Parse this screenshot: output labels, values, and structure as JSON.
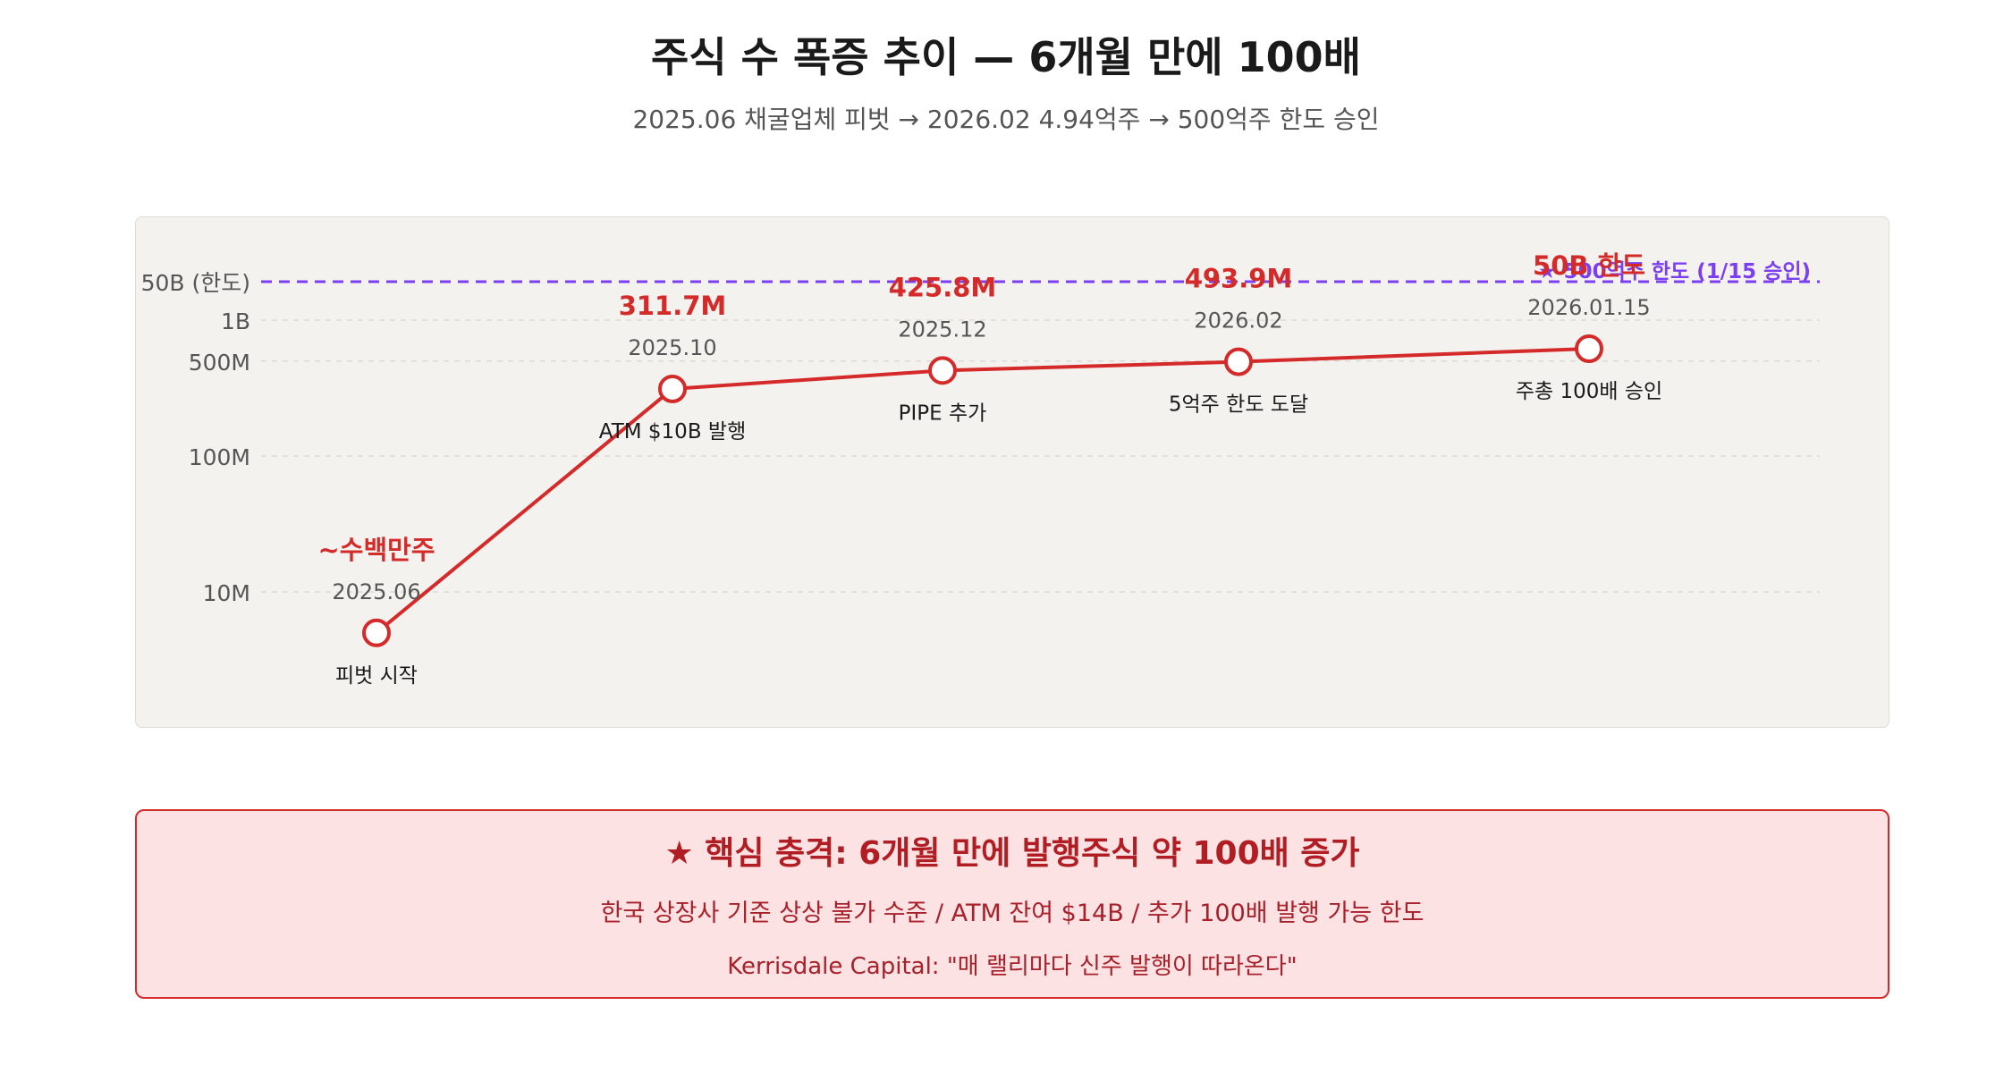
{
  "header": {
    "title": "주식 수 폭증 추이 — 6개월 만에 100배",
    "subtitle": "2025.06 채굴업체 피벗 → 2026.02 4.94억주 → 500억주 한도 승인"
  },
  "chart_data": {
    "type": "line",
    "y_scale": "log",
    "y_ticks": [
      {
        "value": 10000000,
        "label": "10M"
      },
      {
        "value": 100000000,
        "label": "100M"
      },
      {
        "value": 500000000,
        "label": "500M"
      },
      {
        "value": 1000000000,
        "label": "1B"
      }
    ],
    "reference_line": {
      "value": 50000000000,
      "axis_label": "50B (한도)",
      "annotation": "★ 500억주 한도 (1/15 승인)",
      "style": "dashed"
    },
    "grid": true,
    "points": [
      {
        "date": "2025.06",
        "value_label": "~수백만주",
        "caption": "피벗 시작",
        "value": 5000000
      },
      {
        "date": "2025.10",
        "value_label": "311.7M",
        "caption": "ATM $10B 발행",
        "value": 311700000
      },
      {
        "date": "2025.12",
        "value_label": "425.8M",
        "caption": "PIPE 추가",
        "value": 425800000
      },
      {
        "date": "2026.02",
        "value_label": "493.9M",
        "caption": "5억주 한도 도달",
        "value": 493900000
      },
      {
        "date": "2026.01.15",
        "value_label": "50B 한도",
        "caption": "주총 100배 승인",
        "value": 50000000000
      }
    ],
    "colors": {
      "line": "#d42a2a",
      "value_label": "#d42a2a",
      "reference": "#7b3ff2",
      "grid": "#dedad4"
    }
  },
  "callout": {
    "title": "★ 핵심 충격: 6개월 만에 발행주식 약 100배 증가",
    "line1": "한국 상장사 기준 상상 불가 수준 / ATM 잔여 $14B / 추가 100배 발행 가능 한도",
    "line2": "Kerrisdale Capital: \"매 랠리마다 신주 발행이 따라온다\""
  }
}
